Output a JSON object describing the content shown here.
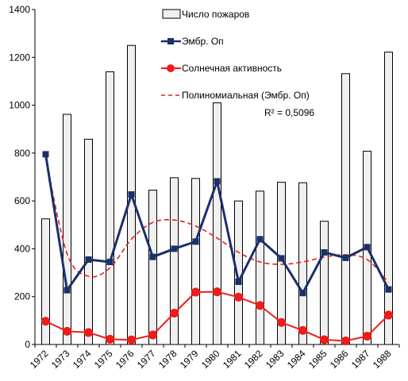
{
  "chart_data": {
    "type": "bar",
    "categories": [
      "1972",
      "1973",
      "1974",
      "1975",
      "1976",
      "1977",
      "1978",
      "1979",
      "1980",
      "1981",
      "1982",
      "1983",
      "1984",
      "1985",
      "1986",
      "1987",
      "1988"
    ],
    "ylim": [
      0,
      1400
    ],
    "yticks": [
      "0",
      "200",
      "400",
      "600",
      "800",
      "1000",
      "1200",
      "1400"
    ],
    "ytick_values": [
      0,
      200,
      400,
      600,
      800,
      1000,
      1200,
      1400
    ],
    "grid": false,
    "legend_position": "top-right",
    "series": [
      {
        "name": "Число пожаров",
        "kind": "bar",
        "color": "#f0f0f0",
        "values": [
          525,
          962,
          858,
          1140,
          1250,
          645,
          697,
          694,
          1010,
          600,
          641,
          678,
          676,
          515,
          1132,
          808,
          1222
        ]
      },
      {
        "name": "Эмбр. Оп",
        "kind": "line-square",
        "color": "#1a2f6b",
        "values": [
          795,
          227,
          355,
          345,
          627,
          366,
          400,
          430,
          682,
          262,
          440,
          360,
          215,
          385,
          362,
          407,
          230
        ]
      },
      {
        "name": "Солнечная активность",
        "kind": "line-circle",
        "color": "#ee1c1c",
        "values": [
          97,
          55,
          50,
          22,
          19,
          40,
          131,
          219,
          220,
          198,
          163,
          92,
          59,
          20,
          15,
          35,
          123
        ]
      },
      {
        "name": "Полиномиальная (Эмбр. Оп)",
        "kind": "dashed-trend",
        "color": "#ee1c1c",
        "values": [
          780,
          380,
          285,
          320,
          440,
          510,
          520,
          495,
          445,
          385,
          345,
          335,
          345,
          365,
          375,
          355,
          260
        ]
      }
    ],
    "annotation": "R² = 0,5096"
  }
}
